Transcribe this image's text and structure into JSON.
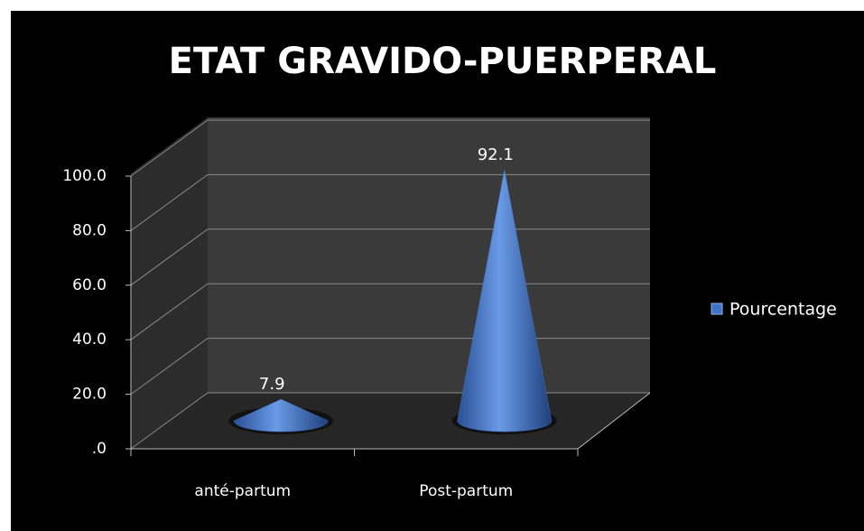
{
  "chart_data": {
    "type": "cone3d",
    "title": "ETAT GRAVIDO-PUERPERAL",
    "categories": [
      "anté-partum",
      "Post-partum"
    ],
    "series": [
      {
        "name": "Pourcentage",
        "color": "#3f74c8",
        "values": [
          7.9,
          92.1
        ]
      }
    ],
    "ylim": [
      0,
      100
    ],
    "yticks": [
      {
        "value": 0,
        "label": ".0"
      },
      {
        "value": 20,
        "label": "20.0"
      },
      {
        "value": 40,
        "label": "40.0"
      },
      {
        "value": 60,
        "label": "60.0"
      },
      {
        "value": 80,
        "label": "80.0"
      },
      {
        "value": 100,
        "label": "100.0"
      }
    ],
    "grid": true,
    "legend": "right"
  }
}
